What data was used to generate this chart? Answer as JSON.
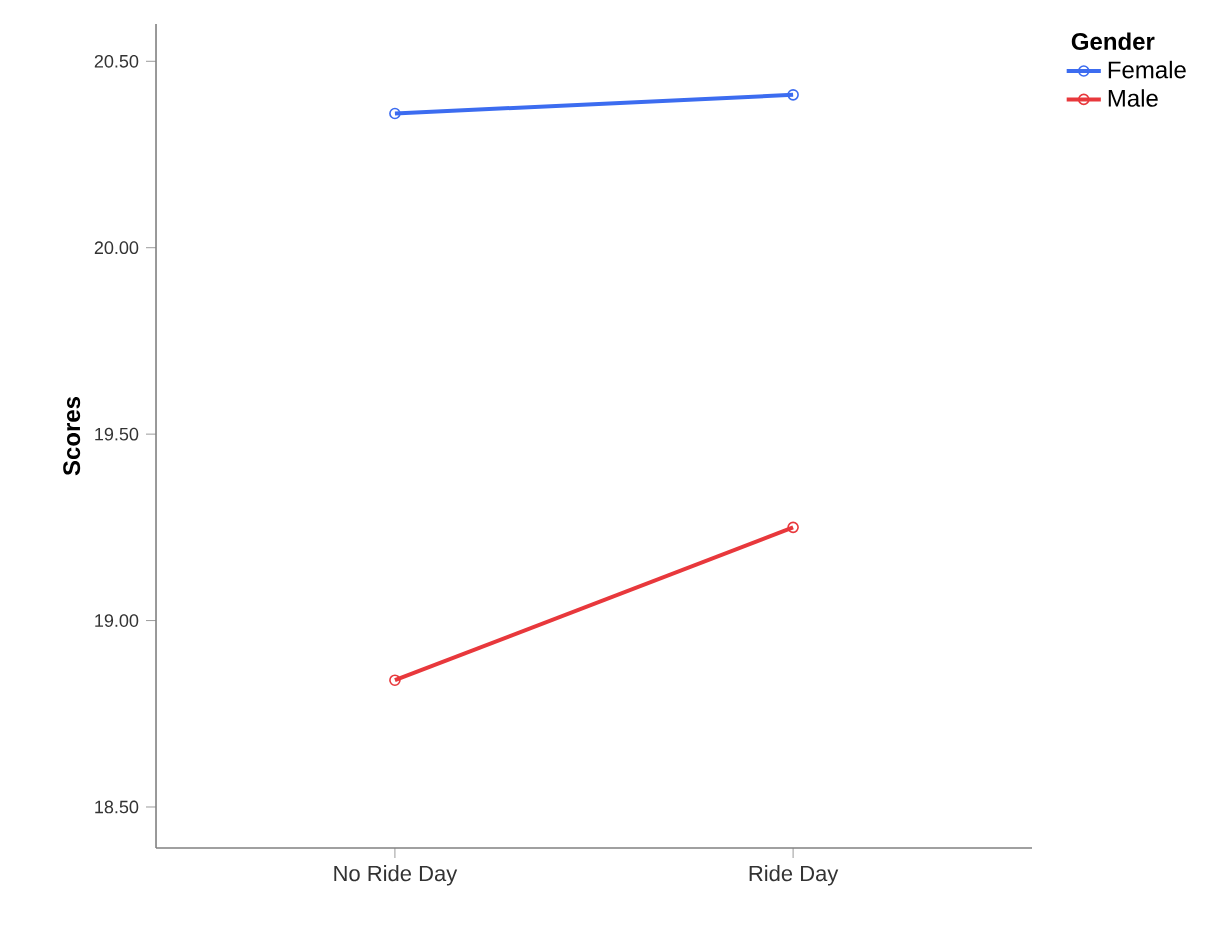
{
  "chart_data": {
    "type": "line",
    "ylabel": "Scores",
    "legend_title": "Gender",
    "categories": [
      "No Ride Day",
      "Ride Day"
    ],
    "series": [
      {
        "name": "Female",
        "color": "#3c6cf0",
        "values": [
          20.36,
          20.41
        ]
      },
      {
        "name": "Male",
        "color": "#e8383c",
        "values": [
          18.84,
          19.25
        ]
      }
    ],
    "ylim": [
      18.39,
      20.6
    ],
    "yticks": [
      {
        "value": 18.5,
        "label": "18.50"
      },
      {
        "value": 19,
        "label": "19.00"
      },
      {
        "value": 19.5,
        "label": "19.50"
      },
      {
        "value": 20,
        "label": "20.00"
      },
      {
        "value": 20.5,
        "label": "20.50"
      }
    ],
    "marker": "circle",
    "line_style": "solid",
    "legend": "top right",
    "grid": false
  }
}
